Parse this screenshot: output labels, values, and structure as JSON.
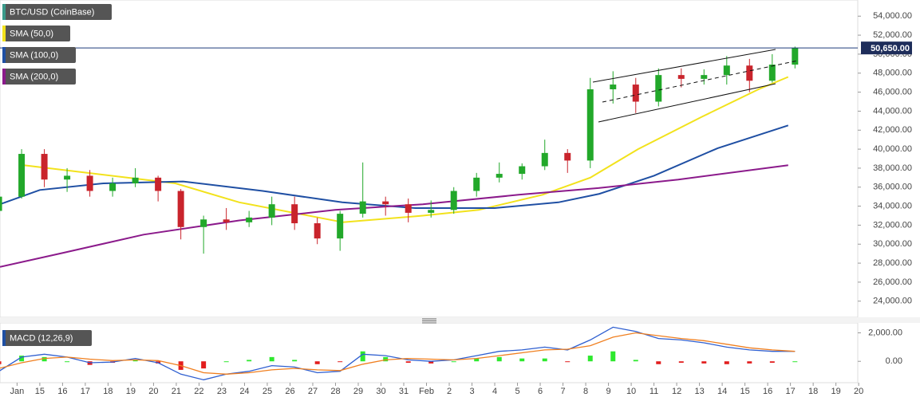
{
  "chart_data": [
    {
      "type": "candlestick",
      "candles": {
        "name": "BTC/USD (CoinBase)",
        "legend_color": "#3a9a8a",
        "up_color": "#22a82a",
        "down_color": "#c9242c",
        "x": [
          13.2,
          14.2,
          15.2,
          16.2,
          17.2,
          18.2,
          19.2,
          20.2,
          21.2,
          22.2,
          23.2,
          24.2,
          25.2,
          26.2,
          27.2,
          28.2,
          29.2,
          30.2,
          31.2,
          32.2,
          33.2,
          34.2,
          35.2,
          36.2,
          37.2,
          38.2,
          39.2,
          40.2,
          41.2,
          42.2,
          43.2,
          44.2,
          45.2,
          46.2,
          47.2,
          48.2
        ],
        "open": [
          33500,
          35000,
          39500,
          36800,
          37200,
          35600,
          36400,
          37000,
          35600,
          31800,
          32600,
          32300,
          32800,
          34200,
          32200,
          30600,
          33200,
          34500,
          34200,
          33300,
          33600,
          35600,
          37000,
          37400,
          38200,
          39600,
          38800,
          46300,
          46800,
          45000,
          47800,
          47400,
          47800,
          48800,
          47200,
          48900
        ],
        "high": [
          35500,
          40000,
          40000,
          38000,
          37800,
          37000,
          38000,
          37200,
          35800,
          33000,
          33800,
          33500,
          35000,
          35000,
          32800,
          33500,
          38600,
          35000,
          34800,
          34600,
          36000,
          37500,
          38600,
          38500,
          41000,
          40000,
          47500,
          48200,
          47500,
          48500,
          48500,
          48400,
          49800,
          49500,
          50000,
          50800
        ],
        "low": [
          33000,
          34800,
          36000,
          35500,
          35000,
          35000,
          36000,
          34500,
          30500,
          29000,
          31500,
          31800,
          32000,
          31500,
          30000,
          29300,
          32800,
          33000,
          32300,
          32800,
          33200,
          35000,
          36500,
          36800,
          37800,
          37500,
          38000,
          44800,
          43800,
          44500,
          46500,
          46800,
          46800,
          46000,
          47000,
          48500
        ],
        "close": [
          35000,
          39500,
          36800,
          37200,
          35600,
          36400,
          37000,
          35600,
          31800,
          32600,
          32300,
          32800,
          34200,
          32200,
          30600,
          33200,
          34500,
          34200,
          33300,
          33600,
          35600,
          37000,
          37400,
          38200,
          39600,
          38800,
          46300,
          46800,
          45000,
          47800,
          47400,
          47800,
          48800,
          47200,
          48900,
          50650
        ]
      },
      "series": [
        {
          "name": "SMA (50,0)",
          "color": "#f2e21c",
          "x": [
            14.3,
            20.96,
            23.77,
            28.33,
            31.84,
            34.3,
            37.1,
            39.2,
            41.3,
            44.1,
            46.6,
            47.9
          ],
          "values": [
            38300,
            36400,
            34400,
            32300,
            33000,
            33600,
            35200,
            37000,
            40000,
            43400,
            46300,
            47600
          ]
        },
        {
          "name": "SMA (100,0)",
          "color": "#1f4fa3",
          "x": [
            13.25,
            15,
            17.8,
            21.3,
            24.8,
            28.3,
            31.5,
            35,
            37.8,
            39.6,
            42,
            44.8,
            47.9
          ],
          "values": [
            34200,
            35700,
            36400,
            36600,
            35600,
            34400,
            33800,
            33800,
            34400,
            35300,
            37200,
            40100,
            42500
          ]
        },
        {
          "name": "SMA (200,0)",
          "color": "#8b1a8b",
          "x": [
            13.25,
            16.05,
            19.56,
            23.77,
            27.98,
            31.84,
            36.05,
            39.56,
            43.07,
            47.9
          ],
          "values": [
            27600,
            29100,
            31000,
            32500,
            33600,
            34200,
            35200,
            35900,
            36800,
            38300
          ]
        }
      ],
      "price_label": {
        "value": 50650,
        "label": "50,650.00"
      },
      "xlim": [
        13.25,
        50.96
      ],
      "ylim": [
        22300,
        55700
      ],
      "yticks": [
        {
          "value": 24000,
          "label": "24,000.00"
        },
        {
          "value": 26000,
          "label": "26,000.00"
        },
        {
          "value": 28000,
          "label": "28,000.00"
        },
        {
          "value": 30000,
          "label": "30,000.00"
        },
        {
          "value": 32000,
          "label": "32,000.00"
        },
        {
          "value": 34000,
          "label": "34,000.00"
        },
        {
          "value": 36000,
          "label": "36,000.00"
        },
        {
          "value": 38000,
          "label": "38,000.00"
        },
        {
          "value": 40000,
          "label": "40,000.00"
        },
        {
          "value": 42000,
          "label": "42,000.00"
        },
        {
          "value": 44000,
          "label": "44,000.00"
        },
        {
          "value": 46000,
          "label": "46,000.00"
        },
        {
          "value": 48000,
          "label": "48,000.00"
        },
        {
          "value": 50000,
          "label": "50,000.00"
        },
        {
          "value": 52000,
          "label": "52,000.00"
        },
        {
          "value": 54000,
          "label": "54,000.00"
        }
      ]
    },
    {
      "type": "macd",
      "name": "MACD (12,26,9)",
      "legend_color": "#1f4fa3",
      "x": [
        13.2,
        14.2,
        15.2,
        16.2,
        17.2,
        18.2,
        19.2,
        20.2,
        21.2,
        22.2,
        23.2,
        24.2,
        25.2,
        26.2,
        27.2,
        28.2,
        29.2,
        30.2,
        31.2,
        32.2,
        33.2,
        34.2,
        35.2,
        36.2,
        37.2,
        38.2,
        39.2,
        40.2,
        41.2,
        42.2,
        43.2,
        44.2,
        45.2,
        46.2,
        47.2,
        48.2
      ],
      "series": [
        {
          "color": "#2f5fd0",
          "values": [
            -700,
            300,
            500,
            300,
            -100,
            -50,
            200,
            -100,
            -900,
            -1300,
            -900,
            -700,
            -300,
            -400,
            -800,
            -700,
            500,
            400,
            100,
            0,
            100,
            400,
            700,
            800,
            1000,
            800,
            1500,
            2400,
            2100,
            1600,
            1500,
            1300,
            1000,
            800,
            700,
            700
          ]
        },
        {
          "color": "#f07f1f",
          "values": [
            -500,
            -100,
            200,
            300,
            150,
            50,
            100,
            50,
            -300,
            -800,
            -900,
            -800,
            -600,
            -500,
            -600,
            -650,
            -200,
            100,
            200,
            150,
            100,
            200,
            400,
            600,
            800,
            850,
            1100,
            1700,
            2000,
            1800,
            1600,
            1450,
            1200,
            950,
            800,
            700
          ]
        }
      ],
      "histogram": {
        "up_color": "#2ee82e",
        "down_color": "#e21d1d",
        "values": [
          -200,
          400,
          300,
          0,
          -250,
          -100,
          100,
          -150,
          -600,
          -500,
          0,
          100,
          300,
          100,
          -200,
          -50,
          700,
          300,
          -100,
          -150,
          0,
          200,
          300,
          200,
          200,
          -50,
          400,
          700,
          100,
          -200,
          -100,
          -150,
          -200,
          -150,
          -100,
          0
        ]
      },
      "xlim": [
        13.25,
        50.96
      ],
      "ylim": [
        -1500,
        2700
      ],
      "yticks": [
        {
          "value": 0,
          "label": "0.00"
        },
        {
          "value": 2000,
          "label": "2,000.00"
        }
      ],
      "xticks": [
        {
          "value": 14,
          "label": "Jan"
        },
        15,
        16,
        17,
        18,
        19,
        20,
        21,
        22,
        23,
        24,
        25,
        26,
        27,
        28,
        29,
        30,
        31,
        {
          "value": 32,
          "label": "Feb"
        },
        {
          "value": 33,
          "label": "2"
        },
        {
          "value": 34,
          "label": "3"
        },
        {
          "value": 35,
          "label": "4"
        },
        {
          "value": 36,
          "label": "5"
        },
        {
          "value": 37,
          "label": "6"
        },
        {
          "value": 38,
          "label": "7"
        },
        {
          "value": 39,
          "label": "8"
        },
        {
          "value": 40,
          "label": "9"
        },
        {
          "value": 41,
          "label": "10"
        },
        {
          "value": 42,
          "label": "11"
        },
        {
          "value": 43,
          "label": "12"
        },
        {
          "value": 44,
          "label": "13"
        },
        {
          "value": 45,
          "label": "14"
        },
        {
          "value": 46,
          "label": "15"
        },
        {
          "value": 47,
          "label": "16"
        },
        {
          "value": 48,
          "label": "17"
        },
        {
          "value": 49,
          "label": "18"
        },
        {
          "value": 50,
          "label": "19"
        },
        {
          "value": 51,
          "label": "20"
        }
      ]
    }
  ]
}
